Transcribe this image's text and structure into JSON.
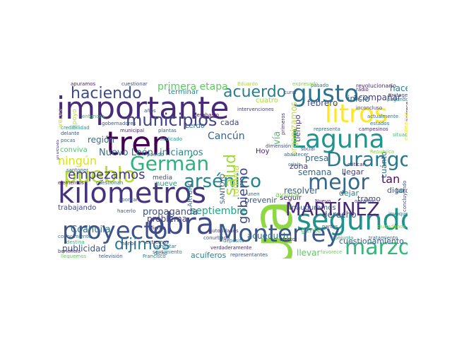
{
  "words": [
    {
      "text": "agua",
      "color": "#8fd744",
      "vertical": true
    },
    {
      "text": "importante",
      "color": "#472a7a"
    },
    {
      "text": "obra",
      "color": "#3e4a89"
    },
    {
      "text": "kilómetros",
      "color": "#46337e"
    },
    {
      "text": "tren",
      "color": "#440154"
    },
    {
      "text": "segundo",
      "color": "#21918c"
    },
    {
      "text": "proyecto",
      "color": "#3b528b"
    },
    {
      "text": "Monterrey",
      "color": "#38588c"
    },
    {
      "text": "Laguna",
      "color": "#1f948c"
    },
    {
      "text": "litros",
      "color": "#fde725"
    },
    {
      "text": "gusto",
      "color": "#2c728e"
    },
    {
      "text": "MARTÍNEZ",
      "color": "#482576"
    },
    {
      "text": "marzo",
      "color": "#35b779"
    },
    {
      "text": "Durango",
      "color": "#2a788e"
    },
    {
      "text": "pueblo",
      "color": "#b5de2b"
    },
    {
      "text": "mejor",
      "color": "#31688e"
    },
    {
      "text": "Germán",
      "color": "#2db27d"
    },
    {
      "text": "arsénico",
      "color": "#25858e"
    },
    {
      "text": "municipios",
      "color": "#414487"
    },
    {
      "text": "haciendo",
      "color": "#3e4989"
    },
    {
      "text": "empezamos",
      "color": "#443983"
    },
    {
      "text": "dijimos",
      "color": "#2a778e"
    },
    {
      "text": "acuerdo",
      "color": "#277f8e"
    },
    {
      "text": "salud",
      "color": "#a0da39",
      "vertical": true
    },
    {
      "text": "gobierno",
      "color": "#3f4788",
      "vertical": true
    },
    {
      "text": "ningún",
      "color": "#d8e219"
    },
    {
      "text": "primera etapa",
      "color": "#5ec962"
    },
    {
      "text": "Cancún",
      "color": "#32658e"
    },
    {
      "text": "septiembre",
      "color": "#20a386"
    },
    {
      "text": "propaganda",
      "color": "#3d4e8a"
    },
    {
      "text": "Coahuila",
      "color": "#2e6e8e"
    },
    {
      "text": "publicidad",
      "color": "#3a538b"
    },
    {
      "text": "Nuevo León",
      "color": "#2d708e"
    },
    {
      "text": "iniciamos",
      "color": "#23898e"
    },
    {
      "text": "acueducto",
      "color": "#2c718e"
    },
    {
      "text": "cuestionamiento",
      "color": "#355f8d"
    },
    {
      "text": "hacemos",
      "color": "#2a788e"
    },
    {
      "text": "acompañar",
      "color": "#443a83"
    },
    {
      "text": "semana",
      "color": "#30698e"
    },
    {
      "text": "tan",
      "color": "#471063"
    },
    {
      "text": "llegar",
      "color": "#424086"
    },
    {
      "text": "resolver",
      "color": "#34608d"
    },
    {
      "text": "presa",
      "color": "#2e6d8e"
    },
    {
      "text": "derecho",
      "color": "#3b518b"
    },
    {
      "text": "inicio",
      "color": "#2c738e"
    },
    {
      "text": "febrero",
      "color": "#3e4c8a"
    },
    {
      "text": "problema",
      "color": "#443b84"
    },
    {
      "text": "llevar",
      "color": "#5cc863"
    },
    {
      "text": "acuíferos",
      "color": "#26828e"
    },
    {
      "text": "prevenir",
      "color": "#3b528b"
    },
    {
      "text": "seguir",
      "color": "#482878"
    },
    {
      "text": "inauguramos",
      "color": "#3a538b"
    },
    {
      "text": "trabajando",
      "color": "#3f4889"
    },
    {
      "text": "región",
      "color": "#2c728e"
    },
    {
      "text": "terminar",
      "color": "#24868e"
    },
    {
      "text": "cada",
      "color": "#414487"
    },
    {
      "text": "Lerdo",
      "color": "#31678e"
    },
    {
      "text": "dejar",
      "color": "#26818e"
    },
    {
      "text": "digo",
      "color": "#39568c"
    },
    {
      "text": "tramo",
      "color": "#3f4788"
    },
    {
      "text": "tardar",
      "color": "#2d708e"
    },
    {
      "text": "nueve",
      "color": "#1f9e89"
    },
    {
      "text": "Hoy",
      "color": "#482071"
    },
    {
      "text": "zona",
      "color": "#453781"
    },
    {
      "text": "vía",
      "color": "#4ac16d",
      "vertical": true
    },
    {
      "text": "tiempo",
      "color": "#46327e",
      "vertical": true
    },
    {
      "text": "gente",
      "color": "#3fbc73"
    },
    {
      "text": "ayudar",
      "color": "#7ad151"
    },
    {
      "text": "cuánto",
      "color": "#2f6c8e",
      "vertical": true
    },
    {
      "text": "todavía",
      "color": "#bddf26",
      "vertical": true
    },
    {
      "text": "cuatro",
      "color": "#a5db36"
    },
    {
      "text": "organizamos",
      "color": "#c2df23",
      "vertical": true
    },
    {
      "text": "ARTURO",
      "color": "#2e6f8e",
      "vertical": true
    },
    {
      "text": "SANTOYO",
      "color": "#3b528b",
      "vertical": true
    },
    {
      "text": "conviva",
      "color": "#4ac16d"
    },
    {
      "text": "media",
      "color": "#3b518b"
    },
    {
      "text": "veces",
      "color": "#d2e21b",
      "vertical": true
    },
    {
      "text": "revolucionario",
      "color": "#472c7a"
    },
    {
      "text": "apoyo",
      "color": "#c0df25",
      "vertical": true
    },
    {
      "text": "aparece",
      "color": "#46307e",
      "vertical": true
    },
    {
      "text": "pasado",
      "color": "#2b758e"
    },
    {
      "text": "expresado",
      "color": "#84d44b"
    },
    {
      "text": "radio",
      "color": "#481b6d"
    },
    {
      "text": "protege",
      "color": "#3d4d8a"
    },
    {
      "text": "pagando",
      "color": "#26818e"
    },
    {
      "text": "empleamos",
      "color": "#f1e51d",
      "vertical": true
    },
    {
      "text": "Eduardo",
      "color": "#a8db34"
    },
    {
      "text": "cuestionar",
      "color": "#3e4a89"
    },
    {
      "text": "apuramos",
      "color": "#482173"
    },
    {
      "text": "años",
      "color": "#38588c"
    },
    {
      "text": "desabasto",
      "color": "#46075a"
    },
    {
      "text": "gobernadores",
      "color": "#3b518b"
    },
    {
      "text": "credibilidad",
      "color": "#21918c"
    },
    {
      "text": "delante",
      "color": "#3a548c"
    },
    {
      "text": "municipal",
      "color": "#481f70"
    },
    {
      "text": "plantas",
      "color": "#34618d"
    },
    {
      "text": "pocas",
      "color": "#2f6b8e"
    },
    {
      "text": "pruebas",
      "color": "#453882",
      "vertical": true
    },
    {
      "text": "iniciar",
      "color": "#2b748e"
    },
    {
      "text": "entonces",
      "color": "#38b977"
    },
    {
      "text": "dedicado",
      "color": "#1fa088"
    },
    {
      "text": "representa",
      "color": "#2e6f8e"
    },
    {
      "text": "campesinos",
      "color": "#472d7b"
    },
    {
      "text": "estados",
      "color": "#2b758e"
    },
    {
      "text": "situación",
      "color": "#3dbc74"
    },
    {
      "text": "concluyendo",
      "color": "#414487",
      "vertical": true
    },
    {
      "text": "República",
      "color": "#8bd646"
    },
    {
      "text": "abastecer",
      "color": "#31678e"
    },
    {
      "text": "dimensión",
      "color": "#3f4788"
    },
    {
      "text": "social",
      "color": "#3d4d8a"
    },
    {
      "text": "criticar",
      "color": "#482677"
    },
    {
      "text": "podido",
      "color": "#2d708e"
    },
    {
      "text": "santoner",
      "color": "#2f6b8e"
    },
    {
      "text": "elementos",
      "color": "#481467"
    },
    {
      "text": "cuestionan",
      "color": "#2e6e8e"
    },
    {
      "text": "abordar",
      "color": "#32658e"
    },
    {
      "text": "hacerlo",
      "color": "#3b528b"
    },
    {
      "text": "conocimiento",
      "color": "#2d708e"
    },
    {
      "text": "beneficio",
      "color": "#453882"
    },
    {
      "text": "televisión",
      "color": "#3c4f8a"
    },
    {
      "text": "Francisco",
      "color": "#26828e"
    },
    {
      "text": "destina",
      "color": "#31b57b"
    },
    {
      "text": "lleguemos",
      "color": "#65cb5e"
    },
    {
      "text": "honor",
      "color": "#3f4788"
    },
    {
      "text": "extremos",
      "color": "#46337e"
    },
    {
      "text": "pierde",
      "color": "#414487"
    },
    {
      "text": "lamentar",
      "color": "#2c728e"
    },
    {
      "text": "dicho",
      "color": "#38588c"
    },
    {
      "text": "depósito",
      "color": "#2a788e"
    },
    {
      "text": "representantes",
      "color": "#3a548c"
    },
    {
      "text": "verdaderamente",
      "color": "#472a7a"
    },
    {
      "text": "autoridades",
      "color": "#443a83"
    },
    {
      "text": "partes",
      "color": "#3d4d8a"
    },
    {
      "text": "Nuevo",
      "color": "#482475"
    },
    {
      "text": "unen",
      "color": "#2f6c8e"
    },
    {
      "text": "ciudadanos",
      "color": "#8fd744"
    },
    {
      "text": "tratamiento",
      "color": "#31678e"
    },
    {
      "text": "opositor",
      "color": "#3f4788"
    },
    {
      "text": "crisis",
      "color": "#2e6e8e"
    },
    {
      "text": "efecto",
      "color": "#482878"
    },
    {
      "text": "conurbada",
      "color": "#3b528b"
    },
    {
      "text": "sentimiento",
      "color": "#2c728e"
    },
    {
      "text": "favorece",
      "color": "#6ccd5a"
    },
    {
      "text": "invoque",
      "color": "#2d708e"
    },
    {
      "text": "conjunto",
      "color": "#20a486"
    },
    {
      "text": "inconcluso",
      "color": "#453781"
    },
    {
      "text": "intervenciones",
      "color": "#433e85"
    },
    {
      "text": "actualmente",
      "color": "#2b748e"
    },
    {
      "text": "curar",
      "color": "#3a548c"
    },
    {
      "text": "primeros",
      "color": "#46327e",
      "vertical": true
    }
  ]
}
